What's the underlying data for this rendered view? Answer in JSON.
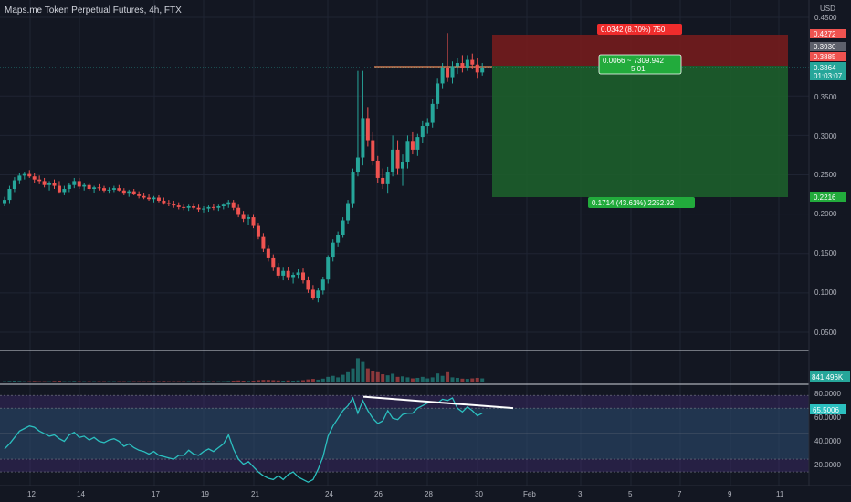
{
  "header": {
    "title": "Maps.me Token Perpetual Futures, 4h, FTX"
  },
  "colors": {
    "bg": "#131722",
    "up": "#26a69a",
    "down": "#ef5350",
    "grid": "#1f2433",
    "rsi": "#2bbfbf",
    "rsi_band": "#3d2c6e",
    "position_loss": "#7a1c1c",
    "position_profit": "#1d5e2b",
    "price_line": "#ef8a5a"
  },
  "price_axis": {
    "unit_label": "USD",
    "ticks": [
      "0.4500",
      "0.3500",
      "0.3000",
      "0.2500",
      "0.2000",
      "0.1500",
      "0.1000",
      "0.0500"
    ]
  },
  "price_tags": {
    "stop": "0.4272",
    "high": "0.3930",
    "entry": "0.3885",
    "last": "0.3864",
    "countdown": "01:03:07",
    "target": "0.2216"
  },
  "position": {
    "risk_label": "0.0342 (8.70%) 750",
    "center_line1": "0.0066 ~ 7309.942",
    "center_line2": "5.01",
    "reward_label": "0.1714 (43.61%) 2252.92"
  },
  "volume": {
    "last_label": "841.496K"
  },
  "rsi": {
    "value_label": "65.5006",
    "ticks": [
      "80.0000",
      "60.0000",
      "40.0000",
      "20.0000"
    ]
  },
  "time_axis": {
    "labels": [
      "12",
      "14",
      "17",
      "19",
      "21",
      "24",
      "26",
      "28",
      "30",
      "Feb",
      "3",
      "5",
      "7",
      "9",
      "11"
    ]
  },
  "chart_data": {
    "type": "candlestick",
    "title": "Maps.me Token Perpetual Futures, 4h, FTX",
    "ylim": [
      0.025,
      0.455
    ],
    "series": [
      {
        "name": "Maps.me Token Perpetual Futures",
        "ohlc": [
          [
            0.214,
            0.222,
            0.21,
            0.218
          ],
          [
            0.218,
            0.236,
            0.214,
            0.232
          ],
          [
            0.232,
            0.247,
            0.228,
            0.243
          ],
          [
            0.243,
            0.252,
            0.238,
            0.249
          ],
          [
            0.249,
            0.254,
            0.244,
            0.251
          ],
          [
            0.251,
            0.256,
            0.246,
            0.248
          ],
          [
            0.248,
            0.252,
            0.24,
            0.244
          ],
          [
            0.244,
            0.249,
            0.238,
            0.242
          ],
          [
            0.242,
            0.246,
            0.234,
            0.237
          ],
          [
            0.237,
            0.242,
            0.23,
            0.24
          ],
          [
            0.24,
            0.244,
            0.232,
            0.236
          ],
          [
            0.236,
            0.242,
            0.226,
            0.228
          ],
          [
            0.228,
            0.236,
            0.224,
            0.232
          ],
          [
            0.232,
            0.24,
            0.228,
            0.237
          ],
          [
            0.237,
            0.246,
            0.233,
            0.242
          ],
          [
            0.242,
            0.246,
            0.232,
            0.235
          ],
          [
            0.235,
            0.24,
            0.23,
            0.237
          ],
          [
            0.237,
            0.24,
            0.23,
            0.232
          ],
          [
            0.232,
            0.236,
            0.227,
            0.234
          ],
          [
            0.234,
            0.238,
            0.23,
            0.233
          ],
          [
            0.233,
            0.236,
            0.228,
            0.23
          ],
          [
            0.23,
            0.234,
            0.226,
            0.231
          ],
          [
            0.231,
            0.236,
            0.228,
            0.233
          ],
          [
            0.233,
            0.237,
            0.229,
            0.23
          ],
          [
            0.23,
            0.233,
            0.224,
            0.226
          ],
          [
            0.226,
            0.231,
            0.222,
            0.229
          ],
          [
            0.229,
            0.232,
            0.224,
            0.225
          ],
          [
            0.225,
            0.229,
            0.22,
            0.223
          ],
          [
            0.223,
            0.227,
            0.219,
            0.221
          ],
          [
            0.221,
            0.225,
            0.217,
            0.219
          ],
          [
            0.219,
            0.223,
            0.215,
            0.221
          ],
          [
            0.221,
            0.224,
            0.215,
            0.217
          ],
          [
            0.217,
            0.221,
            0.212,
            0.214
          ],
          [
            0.214,
            0.218,
            0.21,
            0.213
          ],
          [
            0.213,
            0.217,
            0.208,
            0.211
          ],
          [
            0.211,
            0.215,
            0.206,
            0.209
          ],
          [
            0.209,
            0.213,
            0.205,
            0.208
          ],
          [
            0.208,
            0.212,
            0.204,
            0.21
          ],
          [
            0.21,
            0.214,
            0.206,
            0.208
          ],
          [
            0.208,
            0.212,
            0.203,
            0.206
          ],
          [
            0.206,
            0.21,
            0.202,
            0.207
          ],
          [
            0.207,
            0.211,
            0.203,
            0.209
          ],
          [
            0.209,
            0.213,
            0.205,
            0.208
          ],
          [
            0.208,
            0.212,
            0.204,
            0.21
          ],
          [
            0.21,
            0.214,
            0.206,
            0.212
          ],
          [
            0.212,
            0.218,
            0.208,
            0.215
          ],
          [
            0.215,
            0.218,
            0.205,
            0.208
          ],
          [
            0.208,
            0.212,
            0.196,
            0.199
          ],
          [
            0.199,
            0.204,
            0.19,
            0.194
          ],
          [
            0.194,
            0.199,
            0.186,
            0.196
          ],
          [
            0.196,
            0.199,
            0.182,
            0.185
          ],
          [
            0.185,
            0.189,
            0.168,
            0.171
          ],
          [
            0.171,
            0.176,
            0.152,
            0.156
          ],
          [
            0.156,
            0.161,
            0.14,
            0.144
          ],
          [
            0.144,
            0.149,
            0.128,
            0.132
          ],
          [
            0.132,
            0.138,
            0.118,
            0.122
          ],
          [
            0.122,
            0.132,
            0.116,
            0.128
          ],
          [
            0.128,
            0.133,
            0.116,
            0.119
          ],
          [
            0.119,
            0.126,
            0.112,
            0.123
          ],
          [
            0.123,
            0.13,
            0.118,
            0.126
          ],
          [
            0.126,
            0.131,
            0.112,
            0.116
          ],
          [
            0.116,
            0.121,
            0.1,
            0.104
          ],
          [
            0.104,
            0.11,
            0.091,
            0.094
          ],
          [
            0.094,
            0.106,
            0.088,
            0.103
          ],
          [
            0.103,
            0.12,
            0.098,
            0.117
          ],
          [
            0.117,
            0.148,
            0.112,
            0.145
          ],
          [
            0.145,
            0.168,
            0.14,
            0.164
          ],
          [
            0.164,
            0.178,
            0.158,
            0.174
          ],
          [
            0.174,
            0.196,
            0.17,
            0.192
          ],
          [
            0.192,
            0.218,
            0.188,
            0.214
          ],
          [
            0.214,
            0.258,
            0.208,
            0.254
          ],
          [
            0.254,
            0.382,
            0.248,
            0.272
          ],
          [
            0.272,
            0.382,
            0.262,
            0.322
          ],
          [
            0.322,
            0.336,
            0.286,
            0.294
          ],
          [
            0.294,
            0.304,
            0.262,
            0.268
          ],
          [
            0.268,
            0.274,
            0.24,
            0.246
          ],
          [
            0.246,
            0.258,
            0.232,
            0.238
          ],
          [
            0.238,
            0.26,
            0.226,
            0.254
          ],
          [
            0.254,
            0.3,
            0.248,
            0.282
          ],
          [
            0.282,
            0.294,
            0.25,
            0.258
          ],
          [
            0.258,
            0.276,
            0.236,
            0.266
          ],
          [
            0.266,
            0.3,
            0.258,
            0.292
          ],
          [
            0.292,
            0.304,
            0.276,
            0.282
          ],
          [
            0.282,
            0.302,
            0.274,
            0.298
          ],
          [
            0.298,
            0.318,
            0.29,
            0.312
          ],
          [
            0.312,
            0.322,
            0.302,
            0.316
          ],
          [
            0.316,
            0.346,
            0.31,
            0.34
          ],
          [
            0.34,
            0.372,
            0.334,
            0.366
          ],
          [
            0.366,
            0.392,
            0.36,
            0.386
          ],
          [
            0.386,
            0.43,
            0.368,
            0.374
          ],
          [
            0.374,
            0.394,
            0.366,
            0.388
          ],
          [
            0.388,
            0.398,
            0.378,
            0.392
          ],
          [
            0.392,
            0.402,
            0.38,
            0.386
          ],
          [
            0.386,
            0.402,
            0.382,
            0.396
          ],
          [
            0.396,
            0.404,
            0.384,
            0.39
          ],
          [
            0.39,
            0.398,
            0.372,
            0.38
          ],
          [
            0.38,
            0.392,
            0.376,
            0.386
          ]
        ]
      }
    ],
    "volume_scale_max": 1,
    "volume": [
      0.05,
      0.06,
      0.07,
      0.06,
      0.05,
      0.05,
      0.06,
      0.05,
      0.05,
      0.05,
      0.06,
      0.07,
      0.05,
      0.05,
      0.06,
      0.05,
      0.05,
      0.05,
      0.05,
      0.05,
      0.05,
      0.05,
      0.05,
      0.05,
      0.05,
      0.05,
      0.05,
      0.05,
      0.05,
      0.05,
      0.05,
      0.05,
      0.06,
      0.05,
      0.05,
      0.05,
      0.05,
      0.05,
      0.05,
      0.05,
      0.05,
      0.05,
      0.05,
      0.05,
      0.05,
      0.06,
      0.07,
      0.08,
      0.07,
      0.06,
      0.07,
      0.09,
      0.1,
      0.1,
      0.09,
      0.08,
      0.07,
      0.08,
      0.07,
      0.08,
      0.09,
      0.12,
      0.14,
      0.11,
      0.15,
      0.22,
      0.26,
      0.2,
      0.3,
      0.4,
      0.55,
      0.95,
      0.8,
      0.55,
      0.45,
      0.4,
      0.32,
      0.28,
      0.34,
      0.22,
      0.24,
      0.2,
      0.16,
      0.18,
      0.22,
      0.16,
      0.2,
      0.35,
      0.26,
      0.4,
      0.2,
      0.18,
      0.15,
      0.14,
      0.16,
      0.18,
      0.16
    ],
    "rsi": [
      38,
      42,
      47,
      52,
      54,
      56,
      55,
      52,
      50,
      48,
      49,
      46,
      44,
      49,
      51,
      47,
      48,
      45,
      47,
      44,
      43,
      45,
      46,
      44,
      40,
      42,
      39,
      37,
      36,
      34,
      36,
      33,
      32,
      31,
      30,
      33,
      33,
      37,
      34,
      33,
      36,
      38,
      36,
      39,
      42,
      49,
      38,
      30,
      26,
      28,
      24,
      20,
      17,
      15,
      14,
      17,
      14,
      18,
      20,
      16,
      14,
      12,
      14,
      22,
      32,
      48,
      56,
      62,
      68,
      72,
      78,
      66,
      76,
      68,
      62,
      58,
      60,
      68,
      62,
      61,
      65,
      66,
      66,
      70,
      72,
      74,
      75,
      74,
      77,
      76,
      78,
      70,
      67,
      71,
      68,
      64,
      66
    ],
    "rsi_ylim": [
      10,
      88
    ],
    "rsi_bands": [
      30,
      70
    ]
  }
}
